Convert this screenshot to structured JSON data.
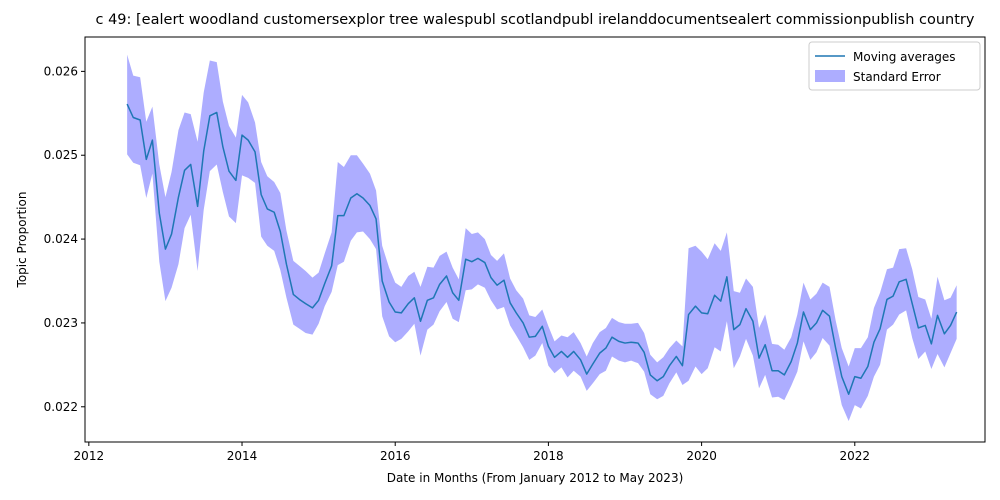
{
  "chart_data": {
    "type": "line",
    "title": "c 49: [ealert woodland customersexplor tree walespubl scotlandpubl irelanddocumentsealert commissionpublish country",
    "xlabel": "Date in Months (From January 2012 to May 2023)",
    "ylabel": "Topic Proportion",
    "xlim": [
      2011.95,
      2023.7
    ],
    "ylim": [
      0.02158,
      0.02641
    ],
    "x_ticks": [
      2012,
      2014,
      2016,
      2018,
      2020,
      2022
    ],
    "x_tick_labels": [
      "2012",
      "2014",
      "2016",
      "2018",
      "2020",
      "2022"
    ],
    "y_ticks": [
      0.022,
      0.023,
      0.024,
      0.025,
      0.026
    ],
    "y_tick_labels": [
      "0.022",
      "0.023",
      "0.024",
      "0.025",
      "0.026"
    ],
    "legend_position": "top-right",
    "grid": false,
    "series": [
      {
        "name": "Moving averages",
        "kind": "line",
        "color": "#1f77b4",
        "x": [
          2012.5,
          2012.58,
          2012.67,
          2012.75,
          2012.83,
          2012.92,
          2013.0,
          2013.08,
          2013.17,
          2013.25,
          2013.33,
          2013.42,
          2013.5,
          2013.58,
          2013.67,
          2013.75,
          2013.83,
          2013.92,
          2014.0,
          2014.08,
          2014.17,
          2014.25,
          2014.33,
          2014.42,
          2014.5,
          2014.58,
          2014.67,
          2014.75,
          2014.83,
          2014.92,
          2015.0,
          2015.08,
          2015.17,
          2015.25,
          2015.33,
          2015.42,
          2015.5,
          2015.58,
          2015.67,
          2015.75,
          2015.83,
          2015.92,
          2016.0,
          2016.08,
          2016.17,
          2016.25,
          2016.33,
          2016.42,
          2016.5,
          2016.58,
          2016.67,
          2016.75,
          2016.83,
          2016.92,
          2017.0,
          2017.08,
          2017.17,
          2017.25,
          2017.33,
          2017.42,
          2017.5,
          2017.58,
          2017.67,
          2017.75,
          2017.83,
          2017.92,
          2018.0,
          2018.08,
          2018.17,
          2018.25,
          2018.33,
          2018.42,
          2018.5,
          2018.58,
          2018.67,
          2018.75,
          2018.83,
          2018.92,
          2019.0,
          2019.08,
          2019.17,
          2019.25,
          2019.33,
          2019.42,
          2019.5,
          2019.58,
          2019.67,
          2019.75,
          2019.83,
          2019.92,
          2020.0,
          2020.08,
          2020.17,
          2020.25,
          2020.33,
          2020.42,
          2020.5,
          2020.58,
          2020.67,
          2020.75,
          2020.83,
          2020.92,
          2021.0,
          2021.08,
          2021.17,
          2021.25,
          2021.33,
          2021.42,
          2021.5,
          2021.58,
          2021.67,
          2021.75,
          2021.83,
          2021.92,
          2022.0,
          2022.08,
          2022.17,
          2022.25,
          2022.33,
          2022.42,
          2022.5,
          2022.58,
          2022.67,
          2022.75,
          2022.83,
          2022.92,
          2023.0,
          2023.08,
          2023.17,
          2023.25,
          2023.33
        ],
        "values": [
          0.02561,
          0.02545,
          0.02542,
          0.02495,
          0.02518,
          0.02431,
          0.02388,
          0.02406,
          0.0245,
          0.02482,
          0.02489,
          0.02439,
          0.02505,
          0.02547,
          0.02551,
          0.0251,
          0.02481,
          0.0247,
          0.02524,
          0.02518,
          0.02504,
          0.02453,
          0.02436,
          0.02432,
          0.02409,
          0.0237,
          0.02334,
          0.02328,
          0.02323,
          0.02318,
          0.02327,
          0.02347,
          0.02368,
          0.02428,
          0.02428,
          0.02449,
          0.02454,
          0.02449,
          0.0244,
          0.02424,
          0.0235,
          0.02325,
          0.02313,
          0.02312,
          0.02323,
          0.0233,
          0.02302,
          0.02327,
          0.0233,
          0.02346,
          0.02356,
          0.02336,
          0.02327,
          0.02376,
          0.02373,
          0.02377,
          0.02372,
          0.02354,
          0.02345,
          0.02351,
          0.02324,
          0.02312,
          0.023,
          0.02283,
          0.02284,
          0.02296,
          0.02272,
          0.02259,
          0.02266,
          0.02259,
          0.02266,
          0.02256,
          0.02239,
          0.02251,
          0.02264,
          0.0227,
          0.02283,
          0.02278,
          0.02276,
          0.02277,
          0.02276,
          0.02265,
          0.02238,
          0.02231,
          0.02236,
          0.02249,
          0.0226,
          0.02249,
          0.0231,
          0.0232,
          0.02312,
          0.02311,
          0.02333,
          0.02326,
          0.02355,
          0.02292,
          0.02298,
          0.02317,
          0.02302,
          0.02258,
          0.02274,
          0.02243,
          0.02243,
          0.02238,
          0.02254,
          0.02276,
          0.02313,
          0.02292,
          0.023,
          0.02315,
          0.02308,
          0.0227,
          0.02236,
          0.02215,
          0.02236,
          0.02234,
          0.02248,
          0.02277,
          0.02293,
          0.02328,
          0.02332,
          0.02349,
          0.02352,
          0.02323,
          0.02294,
          0.02297,
          0.02275,
          0.02309,
          0.02287,
          0.02297,
          0.02313
        ]
      },
      {
        "name": "Standard Error",
        "kind": "band",
        "color": "#0000ff",
        "opacity": 0.32,
        "upper": [
          0.0262,
          0.02595,
          0.02593,
          0.0254,
          0.02558,
          0.02489,
          0.0245,
          0.0248,
          0.0253,
          0.02551,
          0.02549,
          0.02516,
          0.02575,
          0.02613,
          0.02611,
          0.02564,
          0.02535,
          0.02521,
          0.02572,
          0.02563,
          0.02539,
          0.02492,
          0.02475,
          0.02468,
          0.02455,
          0.0241,
          0.02374,
          0.02368,
          0.02362,
          0.02354,
          0.0236,
          0.02383,
          0.02408,
          0.02492,
          0.02486,
          0.025,
          0.025,
          0.0249,
          0.02478,
          0.02458,
          0.02392,
          0.02366,
          0.02348,
          0.02343,
          0.02356,
          0.02361,
          0.02343,
          0.02367,
          0.02366,
          0.0238,
          0.02385,
          0.02366,
          0.02352,
          0.02413,
          0.02406,
          0.02408,
          0.024,
          0.02381,
          0.02374,
          0.02383,
          0.02353,
          0.02339,
          0.02329,
          0.02309,
          0.02307,
          0.02316,
          0.02296,
          0.02278,
          0.02285,
          0.02283,
          0.02289,
          0.02276,
          0.0226,
          0.02276,
          0.02289,
          0.02294,
          0.02306,
          0.02301,
          0.02299,
          0.02299,
          0.023,
          0.02288,
          0.02262,
          0.02253,
          0.02259,
          0.0227,
          0.02279,
          0.02272,
          0.02389,
          0.02392,
          0.02385,
          0.02376,
          0.02395,
          0.02386,
          0.02408,
          0.02338,
          0.02336,
          0.02353,
          0.02343,
          0.02294,
          0.0231,
          0.02275,
          0.02274,
          0.02268,
          0.02283,
          0.0231,
          0.02348,
          0.02328,
          0.02335,
          0.02348,
          0.02343,
          0.02303,
          0.0227,
          0.02248,
          0.0227,
          0.0227,
          0.02283,
          0.02318,
          0.02336,
          0.02364,
          0.02366,
          0.02388,
          0.02389,
          0.02364,
          0.02331,
          0.02328,
          0.02305,
          0.02355,
          0.02327,
          0.0233,
          0.02345
        ],
        "lower": [
          0.02501,
          0.02491,
          0.02488,
          0.02449,
          0.02478,
          0.02373,
          0.02326,
          0.02342,
          0.0237,
          0.02413,
          0.02429,
          0.02362,
          0.02435,
          0.02481,
          0.02489,
          0.02456,
          0.02427,
          0.02419,
          0.02476,
          0.02473,
          0.02467,
          0.02403,
          0.02392,
          0.02386,
          0.02363,
          0.0233,
          0.02298,
          0.02293,
          0.02288,
          0.02286,
          0.02299,
          0.0232,
          0.02337,
          0.02369,
          0.02373,
          0.02398,
          0.02408,
          0.02409,
          0.024,
          0.02388,
          0.02308,
          0.02284,
          0.02277,
          0.02281,
          0.0229,
          0.02299,
          0.02261,
          0.02292,
          0.02298,
          0.02314,
          0.02325,
          0.02305,
          0.02301,
          0.02339,
          0.0234,
          0.02346,
          0.02342,
          0.02327,
          0.02316,
          0.02319,
          0.02297,
          0.02285,
          0.02271,
          0.02256,
          0.02261,
          0.02276,
          0.02249,
          0.0224,
          0.02247,
          0.02235,
          0.02243,
          0.02236,
          0.02219,
          0.02228,
          0.02239,
          0.02243,
          0.0226,
          0.02255,
          0.02253,
          0.02255,
          0.02252,
          0.02242,
          0.02215,
          0.02209,
          0.02213,
          0.02228,
          0.02241,
          0.02226,
          0.02231,
          0.02248,
          0.02239,
          0.02246,
          0.02271,
          0.02266,
          0.02302,
          0.02246,
          0.0226,
          0.02281,
          0.02261,
          0.02222,
          0.02238,
          0.02211,
          0.02212,
          0.02208,
          0.02225,
          0.02242,
          0.02278,
          0.02256,
          0.02265,
          0.02282,
          0.02273,
          0.02237,
          0.02202,
          0.02183,
          0.02202,
          0.02198,
          0.02213,
          0.02236,
          0.0225,
          0.02292,
          0.02298,
          0.0231,
          0.02315,
          0.02282,
          0.02257,
          0.02266,
          0.02245,
          0.02263,
          0.02247,
          0.02264,
          0.02281
        ]
      }
    ]
  }
}
